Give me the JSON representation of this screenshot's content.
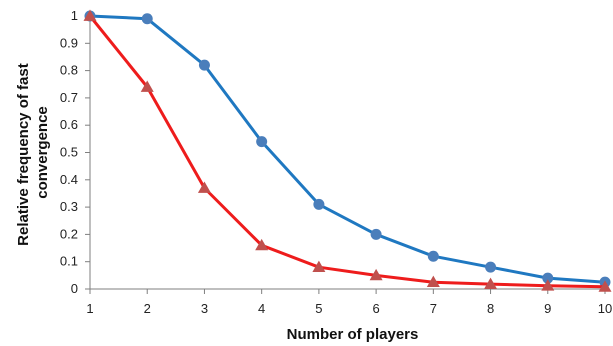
{
  "chart_data": {
    "type": "line",
    "xlabel": "Number of players",
    "ylabel_lines": [
      "Relative frequency of fast",
      "convergence"
    ],
    "x": [
      1,
      2,
      3,
      4,
      5,
      6,
      7,
      8,
      9,
      10
    ],
    "xlim": [
      1,
      10
    ],
    "ylim": [
      0,
      1
    ],
    "x_ticks": [
      "1",
      "2",
      "3",
      "4",
      "5",
      "6",
      "7",
      "8",
      "9",
      "10"
    ],
    "y_ticks": [
      "0",
      "0.1",
      "0.2",
      "0.3",
      "0.4",
      "0.5",
      "0.6",
      "0.7",
      "0.8",
      "0.9",
      "1"
    ],
    "grid": false,
    "legend": "none",
    "series": [
      {
        "color": "#1f78c1",
        "marker_color": "#4a7ebb",
        "marker": "circle",
        "values": [
          1.0,
          0.99,
          0.82,
          0.54,
          0.31,
          0.2,
          0.12,
          0.08,
          0.04,
          0.025
        ]
      },
      {
        "color": "#ee1c1c",
        "marker_color": "#c0504d",
        "marker": "triangle",
        "values": [
          1.0,
          0.74,
          0.37,
          0.16,
          0.08,
          0.05,
          0.025,
          0.018,
          0.012,
          0.008
        ]
      }
    ]
  }
}
